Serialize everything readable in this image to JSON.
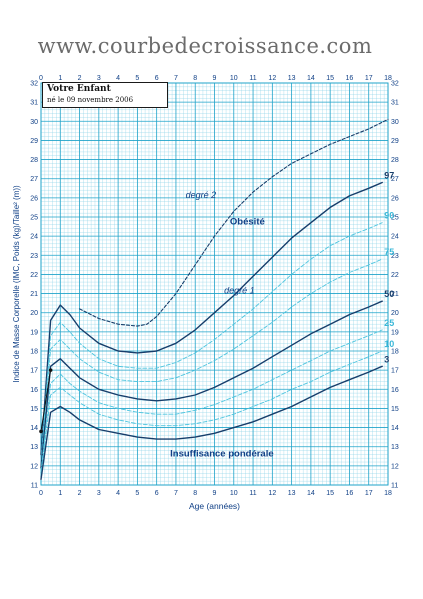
{
  "site_url": "www.courbedecroissance.com",
  "info_box": {
    "title": "Votre Enfant",
    "subtitle": "né le 09 novembre 2006"
  },
  "chart_data": {
    "type": "line",
    "xlabel": "Age (années)",
    "ylabel": "Indice de Masse Corporelle (IMC, Poids (kg)/Taille² (m))",
    "xlim": [
      0,
      18
    ],
    "ylim": [
      11,
      32
    ],
    "x_ticks": [
      0,
      1,
      2,
      3,
      4,
      5,
      6,
      7,
      8,
      9,
      10,
      11,
      12,
      13,
      14,
      15,
      16,
      17,
      18
    ],
    "y_ticks": [
      11,
      12,
      13,
      14,
      15,
      16,
      17,
      18,
      19,
      20,
      21,
      22,
      23,
      24,
      25,
      26,
      27,
      28,
      29,
      30,
      31,
      32
    ],
    "grid": true,
    "annotations": [
      "Obésité",
      "degré 2",
      "degré 1",
      "Insuffisance pondérale"
    ],
    "series": [
      {
        "name": "97",
        "style": "solid",
        "x": [
          0,
          0.5,
          1,
          1.5,
          2,
          3,
          4,
          5,
          6,
          7,
          8,
          9,
          10,
          11,
          12,
          13,
          14,
          15,
          16,
          17,
          17.7
        ],
        "y": [
          12.6,
          19.6,
          20.4,
          19.9,
          19.2,
          18.4,
          18.0,
          17.9,
          18.0,
          18.4,
          19.1,
          20.0,
          20.9,
          21.9,
          22.9,
          23.9,
          24.7,
          25.5,
          26.1,
          26.5,
          26.8
        ]
      },
      {
        "name": "90",
        "style": "dashed",
        "x": [
          0,
          0.5,
          1,
          1.5,
          2,
          3,
          4,
          5,
          6,
          7,
          8,
          9,
          10,
          11,
          12,
          13,
          14,
          15,
          16,
          17,
          17.7
        ],
        "y": [
          12.3,
          18.8,
          19.5,
          19.0,
          18.4,
          17.6,
          17.2,
          17.1,
          17.1,
          17.4,
          17.9,
          18.6,
          19.4,
          20.2,
          21.1,
          22.0,
          22.8,
          23.5,
          24.0,
          24.4,
          24.7
        ]
      },
      {
        "name": "75",
        "style": "dashed",
        "x": [
          0,
          0.5,
          1,
          1.5,
          2,
          3,
          4,
          5,
          6,
          7,
          8,
          9,
          10,
          11,
          12,
          13,
          14,
          15,
          16,
          17,
          17.7
        ],
        "y": [
          12.1,
          18.1,
          18.6,
          18.1,
          17.6,
          16.9,
          16.5,
          16.4,
          16.4,
          16.6,
          17.0,
          17.5,
          18.1,
          18.8,
          19.5,
          20.3,
          21.0,
          21.6,
          22.1,
          22.5,
          22.8
        ]
      },
      {
        "name": "50",
        "style": "solid",
        "x": [
          0,
          0.5,
          1,
          1.5,
          2,
          3,
          4,
          5,
          6,
          7,
          8,
          9,
          10,
          11,
          12,
          13,
          14,
          15,
          16,
          17,
          17.7
        ],
        "y": [
          11.9,
          17.2,
          17.6,
          17.1,
          16.6,
          16.0,
          15.7,
          15.5,
          15.4,
          15.5,
          15.7,
          16.1,
          16.6,
          17.1,
          17.7,
          18.3,
          18.9,
          19.4,
          19.9,
          20.3,
          20.6
        ]
      },
      {
        "name": "25",
        "style": "dashed",
        "x": [
          0,
          0.5,
          1,
          1.5,
          2,
          3,
          4,
          5,
          6,
          7,
          8,
          9,
          10,
          11,
          12,
          13,
          14,
          15,
          16,
          17,
          17.7
        ],
        "y": [
          11.7,
          16.3,
          16.8,
          16.3,
          15.9,
          15.3,
          15.0,
          14.8,
          14.7,
          14.7,
          14.9,
          15.2,
          15.6,
          16.0,
          16.5,
          17.0,
          17.5,
          18.0,
          18.4,
          18.8,
          19.1
        ]
      },
      {
        "name": "10",
        "style": "dashed",
        "x": [
          0,
          0.5,
          1,
          1.5,
          2,
          3,
          4,
          5,
          6,
          7,
          8,
          9,
          10,
          11,
          12,
          13,
          14,
          15,
          16,
          17,
          17.7
        ],
        "y": [
          11.5,
          15.7,
          16.1,
          15.7,
          15.3,
          14.7,
          14.4,
          14.2,
          14.1,
          14.1,
          14.2,
          14.4,
          14.7,
          15.1,
          15.5,
          16.0,
          16.4,
          16.9,
          17.3,
          17.7,
          18.0
        ]
      },
      {
        "name": "3",
        "style": "solid",
        "x": [
          0,
          0.5,
          1,
          1.5,
          2,
          3,
          4,
          5,
          6,
          7,
          8,
          9,
          10,
          11,
          12,
          13,
          14,
          15,
          16,
          17,
          17.7
        ],
        "y": [
          11.3,
          14.8,
          15.1,
          14.8,
          14.4,
          13.9,
          13.7,
          13.5,
          13.4,
          13.4,
          13.5,
          13.7,
          14.0,
          14.3,
          14.7,
          15.1,
          15.6,
          16.1,
          16.5,
          16.9,
          17.2
        ]
      },
      {
        "name": "",
        "style": "dashed-dark",
        "x": [
          2,
          3,
          4,
          5,
          5.5,
          6,
          7,
          8,
          9,
          10,
          11,
          12,
          13,
          14,
          15,
          16,
          17,
          18
        ],
        "y": [
          20.2,
          19.7,
          19.4,
          19.3,
          19.4,
          19.8,
          21.0,
          22.5,
          24.0,
          25.3,
          26.3,
          27.1,
          27.8,
          28.3,
          28.8,
          29.2,
          29.6,
          30.1
        ]
      }
    ],
    "measurements": [
      {
        "x": 0,
        "y": 13.8
      },
      {
        "x": 0.5,
        "y": 17.0
      }
    ]
  }
}
